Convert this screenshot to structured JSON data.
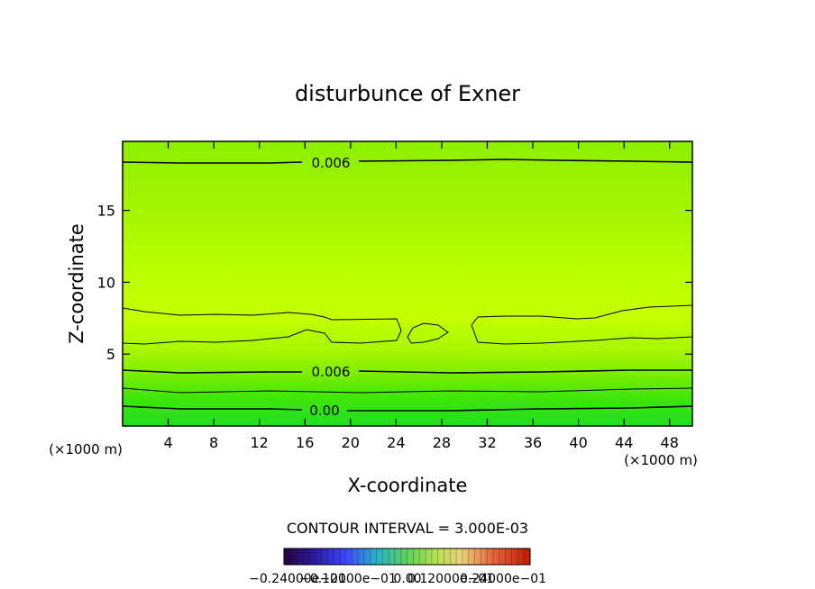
{
  "chart_data": {
    "type": "heatmap",
    "title": "disturbunce of Exner",
    "xlabel": "X-coordinate",
    "ylabel": "Z-coordinate",
    "x_unit": "(×1000 m)",
    "y_unit": "(×1000 m)",
    "xlim": [
      0,
      50
    ],
    "ylim": [
      0,
      19.8
    ],
    "x_ticks": [
      4,
      8,
      12,
      16,
      20,
      24,
      28,
      32,
      36,
      40,
      44,
      48
    ],
    "y_ticks": [
      5,
      10,
      15
    ],
    "contour_interval_text": "CONTOUR INTERVAL = 3.000E-03",
    "contour_labels": [
      {
        "text": "0.006",
        "x": 17.5,
        "z": 18.6
      },
      {
        "text": "0.006",
        "x": 17.5,
        "z": 3.8
      },
      {
        "text": "0.00",
        "x": 17.5,
        "z": 1.2
      }
    ],
    "colorbar_labels": [
      "−0.24000e−01",
      "−0.12000e−01",
      "0.00",
      "0.12000e−01",
      "0.24000e−01"
    ],
    "colors": {
      "field_low": "#1fe01f",
      "field_mid": "#88f000",
      "field_high": "#c4ff00",
      "contour": "#000000"
    }
  }
}
